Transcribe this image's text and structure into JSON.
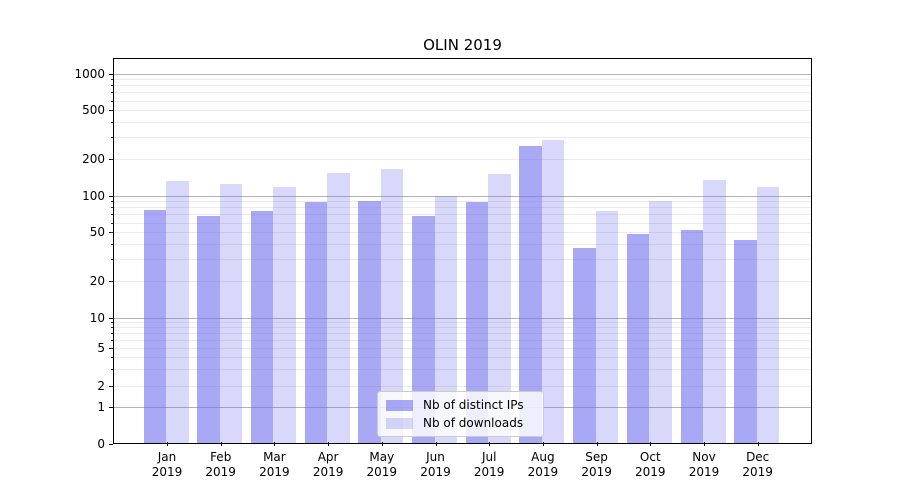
{
  "chart_data": {
    "type": "bar",
    "title": "OLIN 2019",
    "categories": [
      "Jan 2019",
      "Feb 2019",
      "Mar 2019",
      "Apr 2019",
      "May 2019",
      "Jun 2019",
      "Jul 2019",
      "Aug 2019",
      "Sep 2019",
      "Oct 2019",
      "Nov 2019",
      "Dec 2019"
    ],
    "series": [
      {
        "name": "Nb of distinct IPs",
        "color": "#6e6eee",
        "alpha": 0.6,
        "rendered_color": "#a8a8f5",
        "values": [
          76,
          68,
          75,
          89,
          90,
          68,
          89,
          254,
          37,
          48,
          52,
          43
        ]
      },
      {
        "name": "Nb of downloads",
        "color": "#6e6eee",
        "alpha": 0.27,
        "rendered_color": "#d8d8f8",
        "values": [
          131,
          125,
          118,
          154,
          165,
          100,
          151,
          283,
          75,
          90,
          133,
          118
        ]
      }
    ],
    "xlabel": "",
    "ylabel": "",
    "yscale": "symlog",
    "yticks": [
      0,
      1,
      2,
      5,
      10,
      20,
      50,
      100,
      200,
      500,
      1000
    ],
    "ylim": [
      0,
      1340
    ],
    "grid": true,
    "grid_major_color": "#b3b3b3",
    "grid_minor_color": "#ebebeb",
    "legend": {
      "position": "lower center",
      "items": [
        "Nb of distinct IPs",
        "Nb of downloads"
      ]
    }
  }
}
